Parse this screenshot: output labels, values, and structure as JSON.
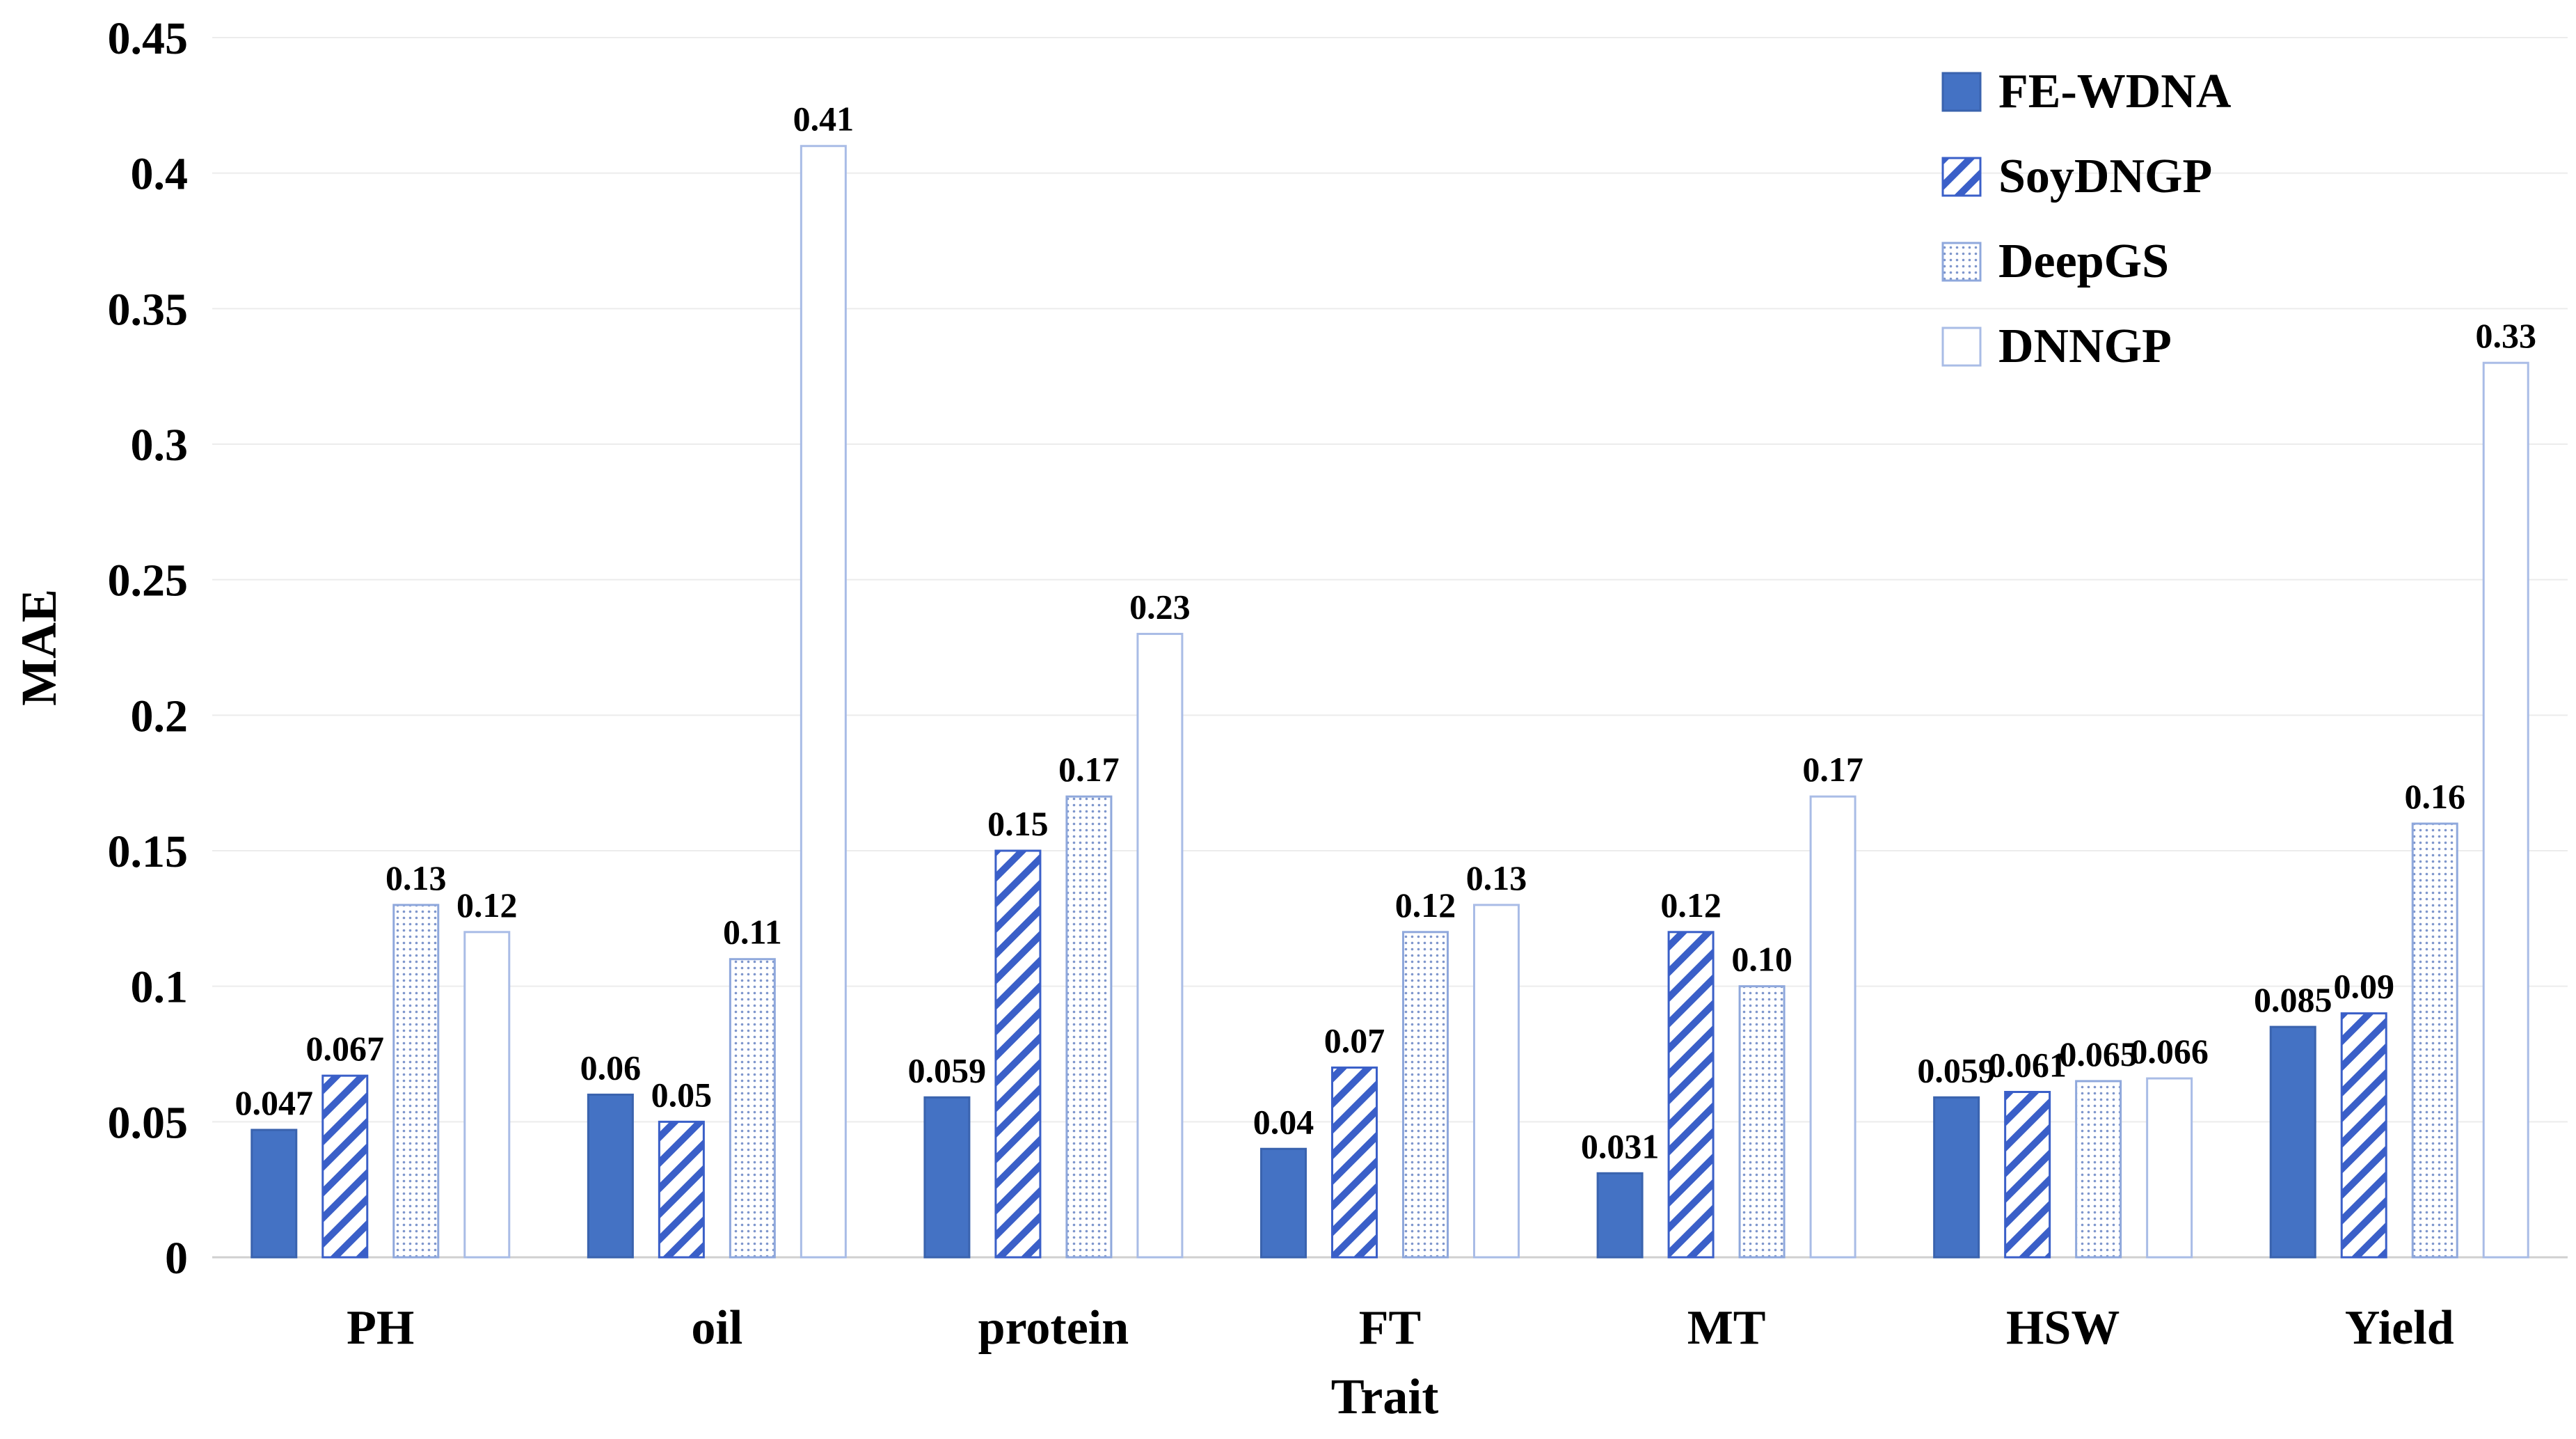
{
  "chart_data": {
    "type": "bar",
    "title": "",
    "xlabel": "Trait",
    "ylabel": "MAE",
    "ylim": [
      0,
      0.45
    ],
    "yticks": [
      "0",
      "0.05",
      "0.1",
      "0.15",
      "0.2",
      "0.25",
      "0.3",
      "0.35",
      "0.4",
      "0.45"
    ],
    "grid": true,
    "legend_position": "top-right",
    "categories": [
      "PH",
      "oil",
      "protein",
      "FT",
      "MT",
      "HSW",
      "Yield"
    ],
    "series": [
      {
        "name": "FE-WDNA",
        "style": "solid",
        "fill": "#4472C4",
        "values": [
          0.047,
          0.06,
          0.059,
          0.04,
          0.031,
          0.059,
          0.085
        ],
        "labels": [
          "0.047",
          "0.06",
          "0.059",
          "0.04",
          "0.031",
          "0.059",
          "0.085"
        ]
      },
      {
        "name": "SoyDNGP",
        "style": "hatch",
        "fill": "#3A5FC8",
        "values": [
          0.067,
          0.05,
          0.15,
          0.07,
          0.12,
          0.061,
          0.09
        ],
        "labels": [
          "0.067",
          "0.05",
          "0.15",
          "0.07",
          "0.12",
          "0.061",
          "0.09"
        ]
      },
      {
        "name": "DeepGS",
        "style": "dots",
        "fill": "#8FA8DC",
        "values": [
          0.13,
          0.11,
          0.17,
          0.12,
          0.1,
          0.065,
          0.16
        ],
        "labels": [
          "0.13",
          "0.11",
          "0.17",
          "0.12",
          "0.10",
          "0.065",
          "0.16"
        ]
      },
      {
        "name": "DNNGP",
        "style": "outline",
        "fill": "#A9BCE6",
        "values": [
          0.12,
          0.41,
          0.23,
          0.13,
          0.17,
          0.066,
          0.33
        ],
        "labels": [
          "0.12",
          "0.41",
          "0.23",
          "0.13",
          "0.17",
          "0.066",
          "0.33"
        ]
      }
    ]
  }
}
